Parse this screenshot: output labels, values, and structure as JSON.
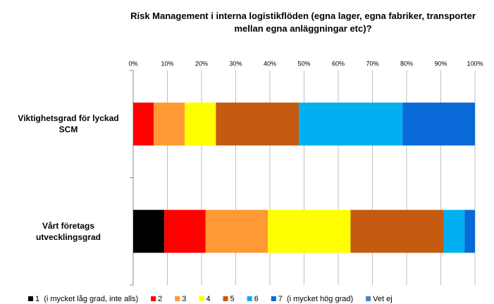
{
  "chart_data": {
    "type": "stacked_bar_horizontal",
    "title": "Risk Management i interna logistikflöden (egna lager, egna fabriker, transporter mellan egna anläggningar etc)?",
    "categories": [
      "Viktighetsgrad för lyckad SCM",
      "Vårt företags utvecklingsgrad"
    ],
    "series": [
      {
        "name": "1  (i mycket låg grad, inte alls)",
        "color": "#000000",
        "values": [
          0,
          9.1
        ]
      },
      {
        "name": "2",
        "color": "#ff0000",
        "values": [
          6,
          12.1
        ]
      },
      {
        "name": "3",
        "color": "#ff9933",
        "values": [
          9.1,
          18.2
        ]
      },
      {
        "name": "4",
        "color": "#ffff00",
        "values": [
          9.1,
          24.2
        ]
      },
      {
        "name": "5",
        "color": "#c55a11",
        "values": [
          24.3,
          27.3
        ]
      },
      {
        "name": "6",
        "color": "#00b0f0",
        "values": [
          30.3,
          6.1
        ]
      },
      {
        "name": "7  (i mycket hög grad)",
        "color": "#0a6ad8",
        "values": [
          21.2,
          3
        ]
      },
      {
        "name": "Vet ej",
        "color": "#4f81bd",
        "values": [
          0,
          0
        ]
      }
    ],
    "xlim": [
      0,
      100
    ],
    "xticks": [
      {
        "value": 0,
        "label": "0%"
      },
      {
        "value": 10,
        "label": "10%"
      },
      {
        "value": 20,
        "label": "20%"
      },
      {
        "value": 30,
        "label": "30%"
      },
      {
        "value": 40,
        "label": "40%"
      },
      {
        "value": 50,
        "label": "50%"
      },
      {
        "value": 60,
        "label": "60%"
      },
      {
        "value": 70,
        "label": "70%"
      },
      {
        "value": 80,
        "label": "80%"
      },
      {
        "value": 90,
        "label": "90%"
      },
      {
        "value": 100,
        "label": "100%"
      }
    ],
    "grid": true,
    "legend": "bottom"
  }
}
